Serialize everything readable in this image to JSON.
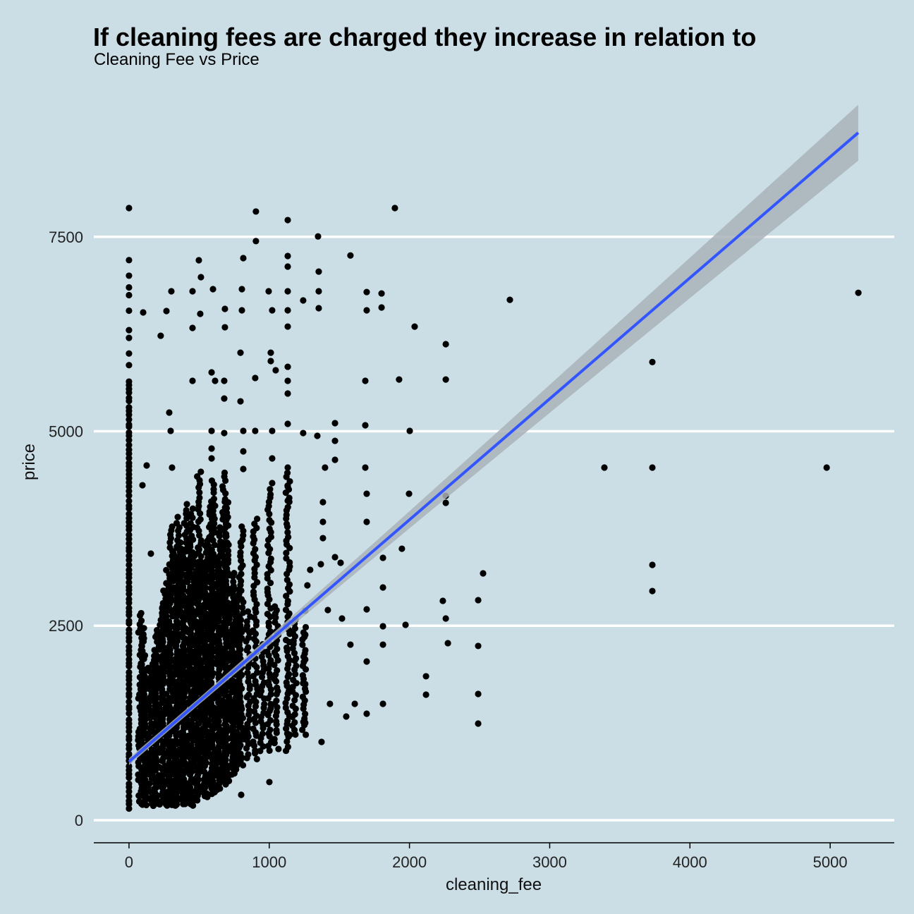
{
  "chart_data": {
    "type": "scatter",
    "title": "If cleaning fees are charged they increase in relation to",
    "subtitle": "Cleaning Fee vs Price",
    "xlabel": "cleaning_fee",
    "ylabel": "price",
    "xlim": [
      -251,
      5457
    ],
    "ylim": [
      -245,
      9275
    ],
    "xticks": [
      "0",
      "1000",
      "2000",
      "3000",
      "4000",
      "5000"
    ],
    "xtick_values": [
      0,
      1000,
      2000,
      3000,
      4000,
      5000
    ],
    "yticks": [
      "0",
      "2500",
      "5000",
      "7500"
    ],
    "ytick_values": [
      0,
      2500,
      5000,
      7500
    ],
    "grid": "horizontal major",
    "legend": "none",
    "colors": {
      "background": "#cbdee6",
      "points": "#000000",
      "fit_line": "#3355ff",
      "ci_band": "#a9b3b9",
      "grid": "#ffffff"
    },
    "fit": {
      "method": "lm",
      "intercept": 752,
      "slope": 1.555,
      "x_range": [
        0,
        5200
      ],
      "ci_halfwidth": [
        [
          0,
          45
        ],
        [
          500,
          40
        ],
        [
          1000,
          55
        ],
        [
          2000,
          110
        ],
        [
          3000,
          180
        ],
        [
          4000,
          260
        ],
        [
          5200,
          360
        ]
      ]
    },
    "dense_columns": [
      [
        0,
        150,
        5700
      ],
      [
        80,
        200,
        2700
      ],
      [
        100,
        200,
        2500
      ],
      [
        120,
        200,
        1900
      ],
      [
        150,
        200,
        2000
      ],
      [
        180,
        200,
        2200
      ],
      [
        200,
        200,
        2500
      ],
      [
        230,
        200,
        2800
      ],
      [
        250,
        200,
        3000
      ],
      [
        280,
        200,
        3300
      ],
      [
        300,
        200,
        3800
      ],
      [
        330,
        200,
        3500
      ],
      [
        350,
        200,
        3900
      ],
      [
        380,
        200,
        3600
      ],
      [
        400,
        200,
        4100
      ],
      [
        430,
        200,
        3600
      ],
      [
        450,
        200,
        4000
      ],
      [
        480,
        250,
        3500
      ],
      [
        500,
        250,
        4500
      ],
      [
        530,
        300,
        3300
      ],
      [
        550,
        300,
        3600
      ],
      [
        580,
        350,
        4100
      ],
      [
        600,
        350,
        4400
      ],
      [
        630,
        400,
        3400
      ],
      [
        650,
        400,
        3800
      ],
      [
        680,
        450,
        4500
      ],
      [
        700,
        500,
        4100
      ],
      [
        730,
        600,
        3000
      ],
      [
        750,
        600,
        3200
      ],
      [
        780,
        700,
        3000
      ],
      [
        800,
        700,
        3800
      ],
      [
        850,
        800,
        2700
      ],
      [
        900,
        800,
        3900
      ],
      [
        950,
        900,
        2300
      ],
      [
        1000,
        900,
        4300
      ],
      [
        1050,
        1000,
        2800
      ],
      [
        1132,
        900,
        4500
      ],
      [
        1180,
        1100,
        2600
      ],
      [
        1250,
        1100,
        2500
      ]
    ],
    "points": [
      [
        0,
        7870
      ],
      [
        0,
        7200
      ],
      [
        0,
        7000
      ],
      [
        0,
        6850
      ],
      [
        0,
        6750
      ],
      [
        0,
        6550
      ],
      [
        0,
        6300
      ],
      [
        0,
        6200
      ],
      [
        0,
        6000
      ],
      [
        0,
        5850
      ],
      [
        1896,
        7870
      ],
      [
        905,
        7825
      ],
      [
        1132,
        7715
      ],
      [
        905,
        7445
      ],
      [
        1348,
        7505
      ],
      [
        1579,
        7260
      ],
      [
        2716,
        6690
      ],
      [
        5201,
        6780
      ],
      [
        2037,
        6345
      ],
      [
        2259,
        6120
      ],
      [
        2259,
        5665
      ],
      [
        1926,
        5665
      ],
      [
        3732,
        5890
      ],
      [
        2002,
        5005
      ],
      [
        3390,
        4533
      ],
      [
        3732,
        4533
      ],
      [
        4975,
        4533
      ],
      [
        3732,
        3282
      ],
      [
        3732,
        2946
      ],
      [
        2525,
        3173
      ],
      [
        2259,
        4170
      ],
      [
        2259,
        4080
      ],
      [
        1997,
        4197
      ],
      [
        1946,
        3490
      ],
      [
        1972,
        2511
      ],
      [
        2238,
        2820
      ],
      [
        2259,
        2593
      ],
      [
        2490,
        2829
      ],
      [
        2274,
        2276
      ],
      [
        2490,
        2240
      ],
      [
        2118,
        1850
      ],
      [
        2118,
        1614
      ],
      [
        2490,
        1623
      ],
      [
        2490,
        1242
      ],
      [
        1811,
        3373
      ],
      [
        1811,
        2992
      ],
      [
        1811,
        2493
      ],
      [
        1811,
        2257
      ],
      [
        1811,
        1496
      ],
      [
        1695,
        4197
      ],
      [
        1695,
        3835
      ],
      [
        1695,
        2711
      ],
      [
        1695,
        2040
      ],
      [
        1695,
        1369
      ],
      [
        1801,
        6772
      ],
      [
        1801,
        6591
      ],
      [
        1695,
        6790
      ],
      [
        1695,
        6555
      ],
      [
        1685,
        5648
      ],
      [
        1685,
        5077
      ],
      [
        1685,
        4533
      ],
      [
        1469,
        5104
      ],
      [
        1469,
        4877
      ],
      [
        1469,
        4633
      ],
      [
        1398,
        4533
      ],
      [
        1469,
        3382
      ],
      [
        1509,
        3309
      ],
      [
        1418,
        2702
      ],
      [
        1519,
        2593
      ],
      [
        1579,
        2257
      ],
      [
        1610,
        1496
      ],
      [
        1549,
        1333
      ],
      [
        1373,
        1006
      ],
      [
        1433,
        1496
      ],
      [
        1343,
        4941
      ],
      [
        1353,
        7053
      ],
      [
        1353,
        6582
      ],
      [
        1353,
        6800
      ],
      [
        1242,
        4977
      ],
      [
        1242,
        6682
      ],
      [
        1383,
        4089
      ],
      [
        1383,
        3835
      ],
      [
        1383,
        3626
      ],
      [
        1368,
        3291
      ],
      [
        1292,
        3219
      ],
      [
        1272,
        3019
      ],
      [
        1257,
        2693
      ],
      [
        1257,
        2384
      ],
      [
        1257,
        2067
      ],
      [
        1257,
        1750
      ],
      [
        1257,
        1251
      ],
      [
        1147,
        1097
      ],
      [
        1066,
        916
      ],
      [
        1001,
        490
      ],
      [
        800,
        326
      ],
      [
        267,
        6546
      ],
      [
        302,
        6800
      ],
      [
        226,
        6228
      ],
      [
        101,
        6528
      ],
      [
        126,
        4560
      ],
      [
        96,
        4306
      ],
      [
        156,
        3427
      ],
      [
        287,
        5240
      ],
      [
        297,
        5005
      ],
      [
        307,
        4533
      ],
      [
        453,
        6800
      ],
      [
        498,
        7199
      ],
      [
        513,
        6981
      ],
      [
        508,
        6510
      ],
      [
        453,
        6328
      ],
      [
        599,
        6827
      ],
      [
        684,
        6573
      ],
      [
        684,
        6337
      ],
      [
        589,
        5757
      ],
      [
        614,
        5648
      ],
      [
        453,
        5648
      ],
      [
        679,
        5648
      ],
      [
        679,
        5421
      ],
      [
        795,
        5385
      ],
      [
        795,
        6010
      ],
      [
        805,
        6555
      ],
      [
        805,
        6827
      ],
      [
        815,
        7226
      ],
      [
        996,
        6800
      ],
      [
        1021,
        6555
      ],
      [
        1011,
        6010
      ],
      [
        1011,
        5902
      ],
      [
        1046,
        5784
      ],
      [
        900,
        5685
      ],
      [
        1132,
        6555
      ],
      [
        1132,
        6346
      ],
      [
        1132,
        6800
      ],
      [
        1132,
        7117
      ],
      [
        1132,
        7253
      ],
      [
        1132,
        5829
      ],
      [
        1132,
        5648
      ],
      [
        1132,
        5485
      ],
      [
        1132,
        5095
      ],
      [
        1132,
        4533
      ],
      [
        1132,
        4288
      ],
      [
        1132,
        4107
      ],
      [
        1021,
        5005
      ],
      [
        1021,
        4651
      ],
      [
        1021,
        4334
      ],
      [
        900,
        5005
      ],
      [
        815,
        5005
      ],
      [
        815,
        4742
      ],
      [
        815,
        4515
      ],
      [
        679,
        4977
      ],
      [
        589,
        5005
      ],
      [
        589,
        4778
      ],
      [
        589,
        4651
      ]
    ]
  }
}
